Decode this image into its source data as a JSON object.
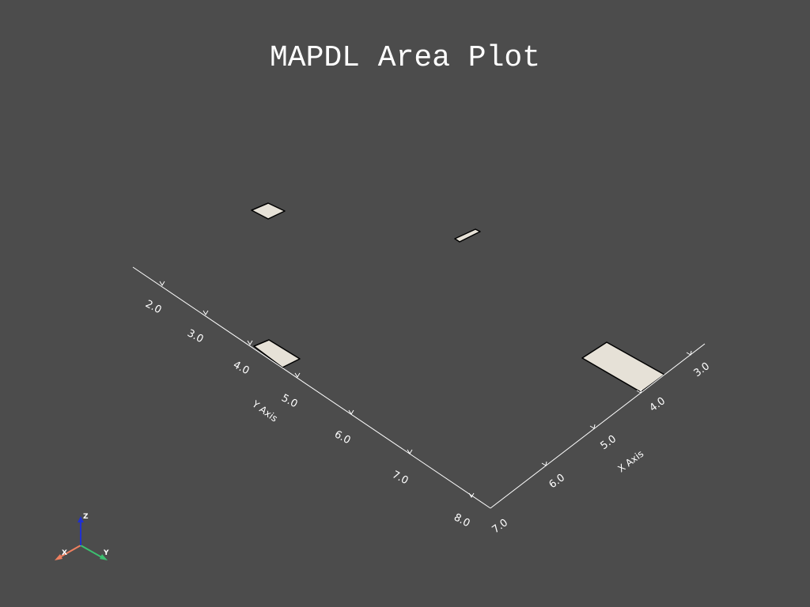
{
  "title": "MAPDL Area Plot",
  "colors": {
    "background": "#4c4c4c",
    "area_fill": "#e6e1d7",
    "area_edge": "#000000",
    "axis": "#ffffff",
    "triad_x": "#f08060",
    "triad_y": "#3cc070",
    "triad_z": "#2030d0"
  },
  "y_axis": {
    "title": "Y Axis",
    "ticks": [
      "2.0",
      "3.0",
      "4.0",
      "5.0",
      "6.0",
      "7.0",
      "8.0"
    ]
  },
  "x_axis": {
    "title": "X Axis",
    "ticks": [
      "7.0",
      "6.0",
      "5.0",
      "4.0",
      "3.0"
    ]
  },
  "triad": {
    "x_label": "X",
    "y_label": "Y",
    "z_label": "Z"
  }
}
